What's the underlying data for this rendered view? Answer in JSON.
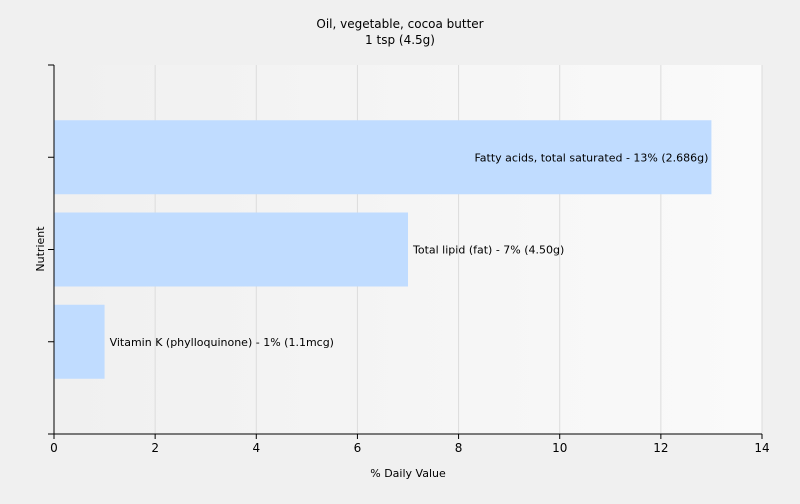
{
  "chart_data": {
    "type": "bar",
    "orientation": "horizontal",
    "title": "Oil, vegetable, cocoa butter",
    "subtitle": "1 tsp (4.5g)",
    "xlabel": "% Daily Value",
    "ylabel": "Nutrient",
    "xlim": [
      0,
      14
    ],
    "x_ticks": [
      0,
      2,
      4,
      6,
      8,
      10,
      12,
      14
    ],
    "grid": true,
    "categories": [
      "Fatty acids, total saturated",
      "Total lipid (fat)",
      "Vitamin K (phylloquinone)"
    ],
    "values": [
      13,
      7,
      1
    ],
    "data_labels": [
      "Fatty acids, total saturated - 13% (2.686g)",
      "Total lipid (fat) - 7% (4.50g)",
      "Vitamin K (phylloquinone) - 1% (1.1mcg)"
    ],
    "colors": {
      "bar": "#c0dcff",
      "background": "#f0f0f0",
      "grid": "#dcdcdc",
      "axis": "#000000"
    }
  }
}
